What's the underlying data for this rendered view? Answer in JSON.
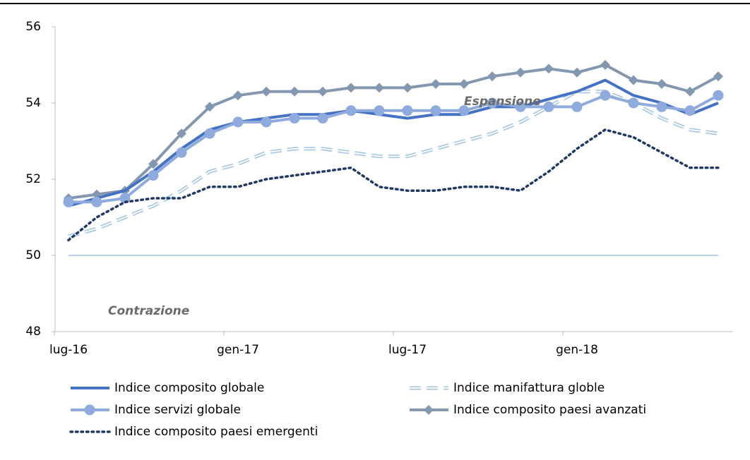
{
  "chart_data": {
    "type": "line",
    "categories": [
      "lug-16",
      null,
      null,
      null,
      null,
      null,
      "gen-17",
      null,
      null,
      null,
      null,
      null,
      "lug-17",
      null,
      null,
      null,
      null,
      null,
      "gen-18",
      null,
      null,
      null,
      null,
      null
    ],
    "series": [
      {
        "name": "Indice composito globale",
        "color": "#4472c4",
        "style": "solid",
        "values": [
          51.3,
          51.5,
          51.7,
          52.2,
          52.8,
          53.3,
          53.5,
          53.6,
          53.7,
          53.7,
          53.8,
          53.7,
          53.6,
          53.7,
          53.7,
          53.9,
          53.9,
          54.1,
          54.3,
          54.6,
          54.2,
          54.0,
          53.7,
          54.0
        ]
      },
      {
        "name": "Indice manifattura globle",
        "color": "#9dc3e6",
        "style": "double-dashed",
        "values": [
          50.5,
          50.7,
          51.0,
          51.3,
          51.7,
          52.2,
          52.4,
          52.7,
          52.8,
          52.8,
          52.7,
          52.6,
          52.6,
          52.8,
          53.0,
          53.2,
          53.5,
          53.9,
          54.3,
          54.3,
          54.0,
          53.6,
          53.3,
          53.2
        ]
      },
      {
        "name": "Indice servizi globale",
        "color": "#8faadc",
        "style": "solid",
        "marker": "circle",
        "values": [
          51.4,
          51.4,
          51.5,
          52.1,
          52.7,
          53.2,
          53.5,
          53.5,
          53.6,
          53.6,
          53.8,
          53.8,
          53.8,
          53.8,
          53.8,
          54.0,
          53.9,
          53.9,
          53.9,
          54.2,
          54.0,
          53.9,
          53.8,
          54.2
        ]
      },
      {
        "name": "Indice composito paesi avanzati",
        "color": "#8497b0",
        "style": "solid",
        "marker": "diamond",
        "values": [
          51.5,
          51.6,
          51.7,
          52.4,
          53.2,
          53.9,
          54.2,
          54.3,
          54.3,
          54.3,
          54.4,
          54.4,
          54.4,
          54.5,
          54.5,
          54.7,
          54.8,
          54.9,
          54.8,
          55.0,
          54.6,
          54.5,
          54.3,
          54.7
        ]
      },
      {
        "name": "Indice composito paesi emergenti",
        "color": "#203864",
        "style": "dotted",
        "values": [
          50.4,
          51.0,
          51.4,
          51.5,
          51.5,
          51.8,
          51.8,
          52.0,
          52.1,
          52.2,
          52.3,
          51.8,
          51.7,
          51.7,
          51.8,
          51.8,
          51.7,
          52.2,
          52.8,
          53.3,
          53.1,
          52.7,
          52.3,
          52.3
        ]
      }
    ],
    "ylim": [
      48,
      56
    ],
    "yticks": [
      48,
      50,
      52,
      54,
      56
    ],
    "reference_line": 50,
    "reference_color": "#9dc3e6",
    "annotations": [
      {
        "text": "Espansione",
        "x": 14,
        "y": 54
      },
      {
        "text": "Contrazione",
        "x": 1.4,
        "y": 48.5
      }
    ]
  }
}
